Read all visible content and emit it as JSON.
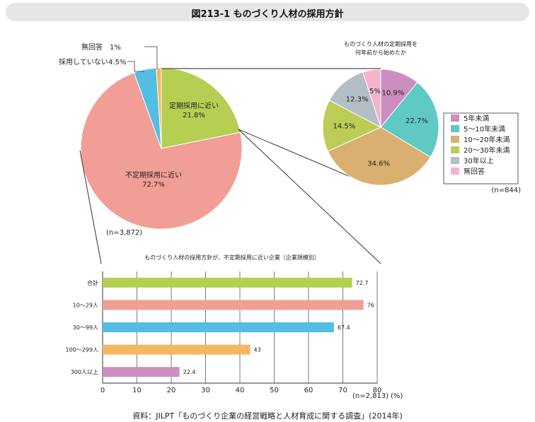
{
  "page": {
    "title": "図213-1 ものづくり人材の採用方針"
  },
  "source": "資料：JILPT「ものづくり企業の経営戦略と人材育成に関する調査」(2014年)",
  "chart_data": [
    {
      "type": "pie",
      "id": "policy",
      "n_label": "(n=3,872)",
      "slices": [
        {
          "label": "定期採用に近い",
          "value_label": "21.8%",
          "value": 21.8,
          "color": "#b6cf53"
        },
        {
          "label": "不定期採用に近い",
          "value_label": "72.7%",
          "value": 72.7,
          "color": "#f09e96"
        },
        {
          "label": "採用していない",
          "value_label": "4.5%",
          "value": 4.5,
          "color": "#53bde2"
        },
        {
          "label": "無回答",
          "value_label": "1%",
          "value": 1.0,
          "color": "#f5b762"
        }
      ]
    },
    {
      "type": "pie",
      "id": "regular_start",
      "title_lines": [
        "ものづくり人材の定期採用を",
        "何年前から始めたか"
      ],
      "n_label": "(n=844)",
      "legend": [
        "5年未満",
        "5～10年未満",
        "10～20年未満",
        "20～30年未満",
        "30年以上",
        "無回答"
      ],
      "slices": [
        {
          "label": "5年未満",
          "value_label": "10.9%",
          "value": 10.9,
          "color": "#cc8ec0"
        },
        {
          "label": "5～10年未満",
          "value_label": "22.7%",
          "value": 22.7,
          "color": "#5ecac2"
        },
        {
          "label": "10～20年未満",
          "value_label": "34.6%",
          "value": 34.6,
          "color": "#d9b070"
        },
        {
          "label": "20～30年未満",
          "value_label": "14.5%",
          "value": 14.5,
          "color": "#bccc55"
        },
        {
          "label": "30年以上",
          "value_label": "12.3%",
          "value": 12.3,
          "color": "#b3bec6"
        },
        {
          "label": "無回答",
          "value_label": "5%",
          "value": 5.0,
          "color": "#f3b3cc"
        }
      ]
    },
    {
      "type": "bar",
      "id": "irregular_by_size",
      "orientation": "horizontal",
      "title": "ものづくり人材の採用方針が、不定期採用に近い企業（企業規模別）",
      "categories": [
        "合計",
        "10～29人",
        "30～99人",
        "100～299人",
        "300人以上"
      ],
      "values": [
        72.7,
        76,
        67.4,
        43,
        22.4
      ],
      "value_labels": [
        "72.7",
        "76",
        "67.4",
        "43",
        "22.4"
      ],
      "colors": [
        "#b6cf53",
        "#f09e96",
        "#53bde2",
        "#f5b762",
        "#cc8ec0"
      ],
      "x_ticks": [
        "0",
        "10",
        "20",
        "30",
        "40",
        "50",
        "60",
        "70",
        "80"
      ],
      "xlim": [
        0,
        80
      ],
      "n_label": "(n=2,813)",
      "unit": "(%)"
    }
  ]
}
